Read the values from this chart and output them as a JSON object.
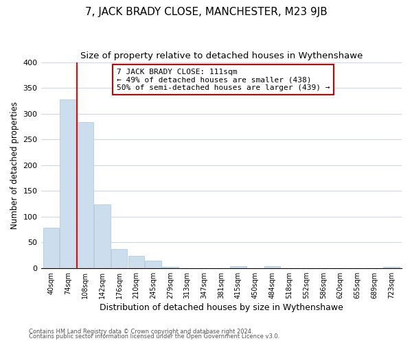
{
  "title": "7, JACK BRADY CLOSE, MANCHESTER, M23 9JB",
  "subtitle": "Size of property relative to detached houses in Wythenshawe",
  "xlabel": "Distribution of detached houses by size in Wythenshawe",
  "ylabel": "Number of detached properties",
  "bin_labels": [
    "40sqm",
    "74sqm",
    "108sqm",
    "142sqm",
    "176sqm",
    "210sqm",
    "245sqm",
    "279sqm",
    "313sqm",
    "347sqm",
    "381sqm",
    "415sqm",
    "450sqm",
    "484sqm",
    "518sqm",
    "552sqm",
    "586sqm",
    "620sqm",
    "655sqm",
    "689sqm",
    "723sqm"
  ],
  "bar_heights": [
    78,
    328,
    283,
    124,
    37,
    24,
    14,
    2,
    0,
    0,
    0,
    4,
    0,
    3,
    0,
    0,
    0,
    0,
    0,
    0,
    2
  ],
  "bar_color": "#ccdded",
  "bar_edge_color": "#a8c4d8",
  "red_line_index": 2,
  "ylim": [
    0,
    400
  ],
  "yticks": [
    0,
    50,
    100,
    150,
    200,
    250,
    300,
    350,
    400
  ],
  "annotation_title": "7 JACK BRADY CLOSE: 111sqm",
  "annotation_line1": "← 49% of detached houses are smaller (438)",
  "annotation_line2": "50% of semi-detached houses are larger (439) →",
  "annotation_box_color": "#ffffff",
  "annotation_box_edge": "#cc0000",
  "footer_line1": "Contains HM Land Registry data © Crown copyright and database right 2024.",
  "footer_line2": "Contains public sector information licensed under the Open Government Licence v3.0.",
  "title_fontsize": 11,
  "subtitle_fontsize": 9.5,
  "xlabel_fontsize": 9,
  "ylabel_fontsize": 8.5,
  "bg_color": "#ffffff",
  "grid_color": "#ccd8e4"
}
